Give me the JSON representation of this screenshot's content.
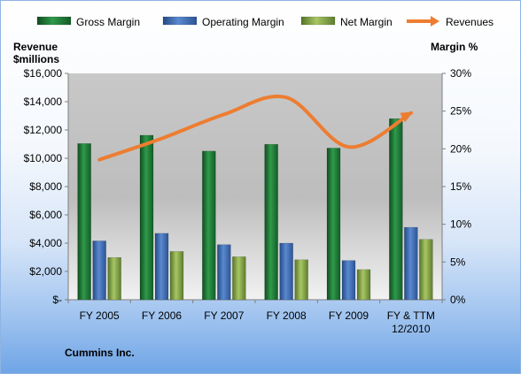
{
  "company_label": "Cummins Inc.",
  "chart_data": {
    "type": "bar",
    "categories": [
      "FY 2005",
      "FY 2006",
      "FY 2007",
      "FY 2008",
      "FY 2009",
      "FY & TTM 12/2010"
    ],
    "series": [
      {
        "name": "Gross Margin",
        "axis": "right",
        "kind": "bar",
        "color": "#1e7a35",
        "values": [
          20.7,
          21.8,
          19.7,
          20.6,
          20.1,
          24.0
        ]
      },
      {
        "name": "Operating Margin",
        "axis": "right",
        "kind": "bar",
        "color": "#3a6bb5",
        "values": [
          7.8,
          8.8,
          7.3,
          7.5,
          5.2,
          9.6
        ]
      },
      {
        "name": "Net Margin",
        "axis": "right",
        "kind": "bar",
        "color": "#7ea341",
        "values": [
          5.6,
          6.4,
          5.7,
          5.3,
          4.0,
          8.0
        ]
      },
      {
        "name": "Revenues",
        "axis": "left",
        "kind": "line",
        "color": "#ed7d31",
        "values": [
          9900,
          11400,
          13100,
          14300,
          10800,
          13200
        ]
      }
    ],
    "y_left": {
      "label_line1": "Revenue",
      "label_line2": "$millions",
      "range": [
        0,
        16000
      ],
      "ticks": [
        "$-",
        "$2,000",
        "$4,000",
        "$6,000",
        "$8,000",
        "$10,000",
        "$12,000",
        "$14,000",
        "$16,000"
      ]
    },
    "y_right": {
      "label": "Margin  %",
      "range": [
        0,
        30
      ],
      "ticks": [
        "0%",
        "5%",
        "10%",
        "15%",
        "20%",
        "25%",
        "30%"
      ]
    },
    "legend": {
      "position": "top",
      "entries": [
        "Gross Margin",
        "Operating Margin",
        "Net Margin",
        "Revenues"
      ]
    },
    "grid": false
  }
}
